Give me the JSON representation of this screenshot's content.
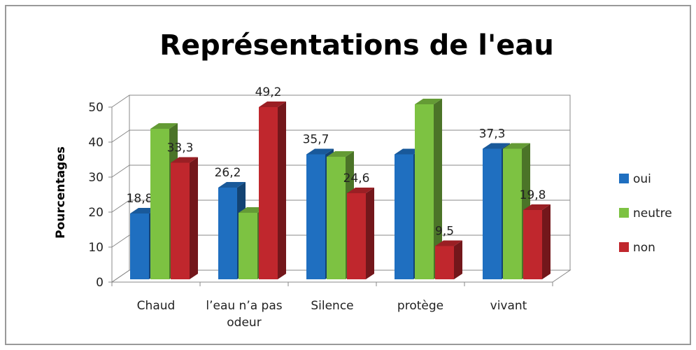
{
  "chart_data": {
    "type": "bar3d",
    "title": "Représentations de l'eau",
    "y_label": "Pourcentages",
    "categories": [
      "Chaud",
      "l’eau n’a pas odeur",
      "Silence",
      "protège",
      "vivant"
    ],
    "series": [
      {
        "name": "oui",
        "color": "#1f6fc0",
        "values": [
          18.8,
          26.2,
          35.7,
          35.7,
          37.3
        ],
        "value_labels": [
          "18,8",
          "26,2",
          "35,7",
          null,
          "37,3"
        ]
      },
      {
        "name": "neutre",
        "color": "#7dc242",
        "values": [
          43,
          19,
          35,
          50,
          37.3
        ],
        "value_labels": [
          null,
          null,
          null,
          null,
          null
        ]
      },
      {
        "name": "non",
        "color": "#c0272d",
        "values": [
          33.3,
          49.2,
          24.6,
          9.5,
          19.8
        ],
        "value_labels": [
          "33,3",
          "49,2",
          "24,6",
          "9,5",
          "19,8"
        ]
      }
    ],
    "ylim": [
      0,
      50
    ],
    "yticks": [
      0,
      10,
      20,
      30,
      40,
      50
    ],
    "grid": true,
    "legend": "right"
  }
}
